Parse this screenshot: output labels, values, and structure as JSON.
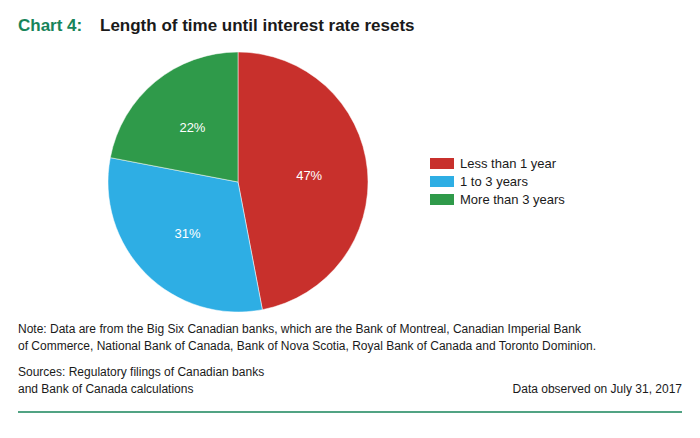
{
  "chart_data": {
    "type": "pie",
    "title_prefix": "Chart 4:",
    "title": "Length of time until interest rate resets",
    "categories": [
      "Less than 1 year",
      "1 to 3 years",
      "More than 3 years"
    ],
    "values": [
      47,
      31,
      22
    ],
    "value_labels": [
      "47%",
      "31%",
      "22%"
    ],
    "colors": [
      "#c8302c",
      "#2eaee4",
      "#2f9a4a"
    ],
    "data_labels": true,
    "legend": "right",
    "note": [
      "Note: Data are from the Big Six Canadian banks, which are the Bank of Montreal, Canadian Imperial Bank",
      "of Commerce, National Bank of Canada, Bank of Nova Scotia, Royal Bank of Canada and Toronto Dominion."
    ],
    "sources": [
      "Sources: Regulatory filings of Canadian banks",
      "and Bank of Canada calculations"
    ],
    "observed": "Data observed on July 31, 2017"
  }
}
